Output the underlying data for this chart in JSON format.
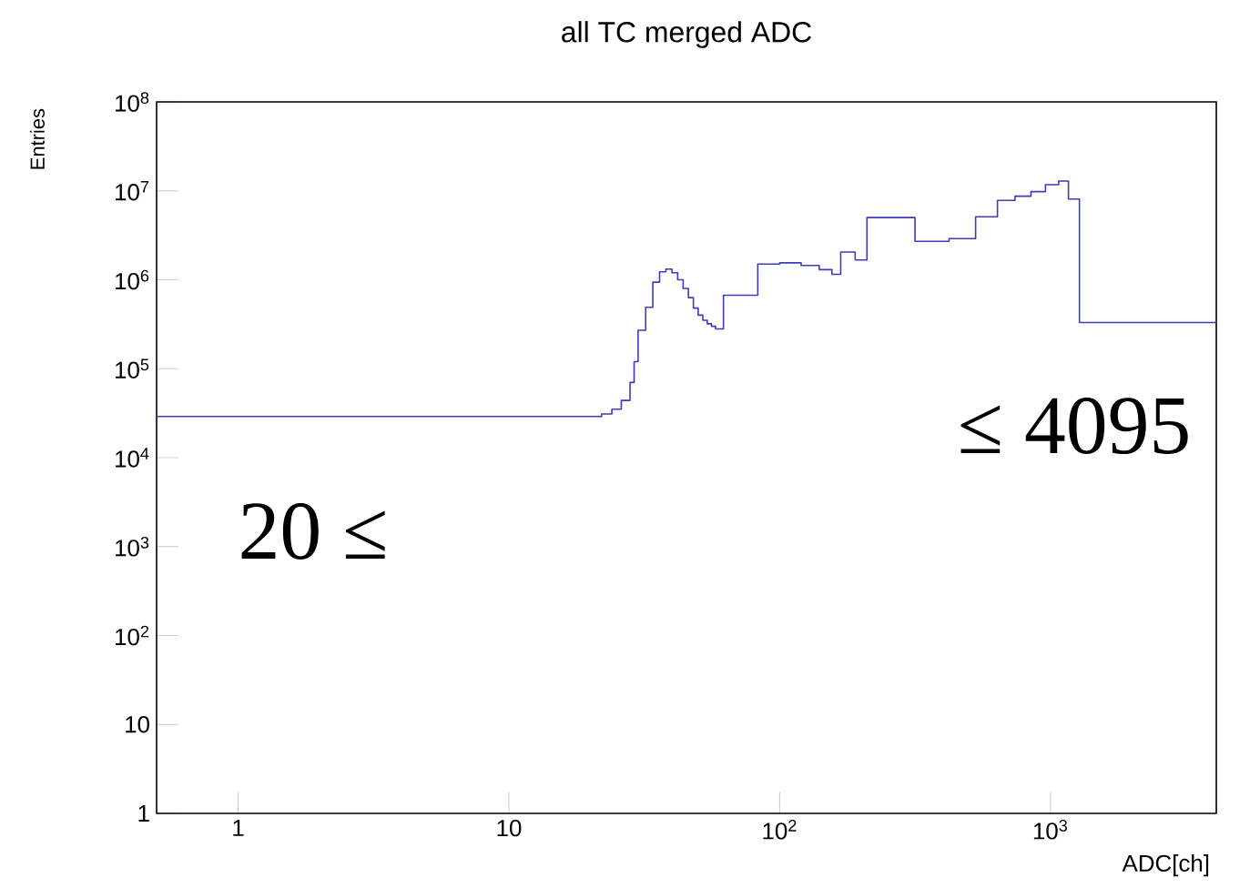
{
  "chart_data": {
    "type": "histogram",
    "title": "all TC merged ADC",
    "xlabel": "ADC[ch]",
    "ylabel": "Entries",
    "bins": [
      0.5,
      22,
      24,
      26,
      28,
      29,
      30,
      31,
      32,
      33,
      34,
      35,
      36,
      37,
      38,
      40,
      42,
      44,
      46,
      48,
      50,
      52,
      54,
      56,
      58,
      62,
      83,
      100,
      120,
      140,
      156,
      168,
      190,
      210,
      316,
      422,
      529,
      637,
      740,
      847,
      958,
      1072,
      1165,
      1279,
      4096
    ],
    "values": [
      29000,
      31000,
      35000,
      44000,
      70000,
      120000,
      270000,
      270000,
      490000,
      490000,
      940000,
      940000,
      1230000,
      1230000,
      1320000,
      1200000,
      1000000,
      800000,
      630000,
      480000,
      400000,
      350000,
      320000,
      300000,
      280000,
      670000,
      1500000,
      1550000,
      1450000,
      1300000,
      1150000,
      2050000,
      1670000,
      5000000,
      2700000,
      2900000,
      5100000,
      7800000,
      8700000,
      9800000,
      11700000,
      12900000,
      8100000,
      330000
    ],
    "color": "#3c3cc0",
    "log": "xy",
    "xlim": [
      0.5,
      4096
    ],
    "ylim": [
      1,
      100000000
    ],
    "xticks": [
      1,
      10,
      {
        "value": 100,
        "label": "10$^{2}$"
      },
      {
        "value": 1000,
        "label": "10$^{3}$"
      }
    ],
    "yticks": [
      1,
      10,
      {
        "value": 100,
        "label": "10$^{2}$"
      },
      {
        "value": 1000,
        "label": "10$^{3}$"
      },
      {
        "value": 10000,
        "label": "10$^{4}$"
      },
      {
        "value": 100000,
        "label": "10$^{5}$"
      },
      {
        "value": 1000000,
        "label": "10$^{6}$"
      },
      {
        "value": 10000000,
        "label": "10$^{7}$"
      },
      {
        "value": 100000000,
        "label": "10$^{8}$"
      }
    ],
    "annotations": [
      "20 ≤",
      "≤ 4095"
    ]
  }
}
